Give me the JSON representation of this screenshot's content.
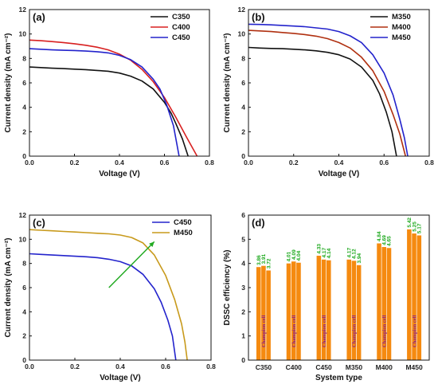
{
  "chart_data": [
    {
      "panel_label": "(a)",
      "type": "line",
      "xlabel": "Voltage (V)",
      "ylabel": "Current density (mA cm⁻²)",
      "xlim": [
        0,
        0.8
      ],
      "ylim": [
        0,
        12
      ],
      "xticks": [
        "0.0",
        "0.2",
        "0.4",
        "0.6",
        "0.8"
      ],
      "yticks": [
        "0",
        "2",
        "4",
        "6",
        "8",
        "10",
        "12"
      ],
      "legend_position": "top-right",
      "series": [
        {
          "name": "C350",
          "color": "#111111",
          "jsc": 7.3,
          "voc": 0.705,
          "points": [
            [
              0,
              7.3
            ],
            [
              0.05,
              7.25
            ],
            [
              0.1,
              7.2
            ],
            [
              0.15,
              7.17
            ],
            [
              0.2,
              7.12
            ],
            [
              0.25,
              7.08
            ],
            [
              0.3,
              7.02
            ],
            [
              0.35,
              6.95
            ],
            [
              0.4,
              6.8
            ],
            [
              0.45,
              6.55
            ],
            [
              0.5,
              6.15
            ],
            [
              0.55,
              5.5
            ],
            [
              0.6,
              4.4
            ],
            [
              0.63,
              3.5
            ],
            [
              0.65,
              2.7
            ],
            [
              0.68,
              1.4
            ],
            [
              0.705,
              0
            ]
          ]
        },
        {
          "name": "C400",
          "color": "#d82020",
          "jsc": 9.5,
          "voc": 0.745,
          "points": [
            [
              0,
              9.5
            ],
            [
              0.05,
              9.45
            ],
            [
              0.1,
              9.38
            ],
            [
              0.15,
              9.3
            ],
            [
              0.2,
              9.2
            ],
            [
              0.25,
              9.08
            ],
            [
              0.3,
              8.92
            ],
            [
              0.35,
              8.7
            ],
            [
              0.4,
              8.35
            ],
            [
              0.45,
              7.85
            ],
            [
              0.5,
              7.1
            ],
            [
              0.55,
              6.1
            ],
            [
              0.6,
              4.8
            ],
            [
              0.65,
              3.2
            ],
            [
              0.7,
              1.5
            ],
            [
              0.745,
              0
            ]
          ]
        },
        {
          "name": "C450",
          "color": "#2323cc",
          "jsc": 8.8,
          "voc": 0.665,
          "points": [
            [
              0,
              8.8
            ],
            [
              0.05,
              8.75
            ],
            [
              0.1,
              8.7
            ],
            [
              0.15,
              8.67
            ],
            [
              0.2,
              8.65
            ],
            [
              0.25,
              8.6
            ],
            [
              0.3,
              8.55
            ],
            [
              0.35,
              8.45
            ],
            [
              0.4,
              8.25
            ],
            [
              0.45,
              7.9
            ],
            [
              0.5,
              7.3
            ],
            [
              0.55,
              6.3
            ],
            [
              0.58,
              5.5
            ],
            [
              0.61,
              4.2
            ],
            [
              0.64,
              2.5
            ],
            [
              0.665,
              0
            ]
          ]
        }
      ]
    },
    {
      "panel_label": "(b)",
      "type": "line",
      "xlabel": "Voltage (V)",
      "ylabel": "Current density (mA cm⁻²)",
      "xlim": [
        0,
        0.8
      ],
      "ylim": [
        0,
        12
      ],
      "xticks": [
        "0.0",
        "0.2",
        "0.4",
        "0.6",
        "0.8"
      ],
      "yticks": [
        "0",
        "2",
        "4",
        "6",
        "8",
        "10",
        "12"
      ],
      "legend_position": "top-right",
      "series": [
        {
          "name": "M350",
          "color": "#111111",
          "jsc": 8.9,
          "voc": 0.655,
          "points": [
            [
              0,
              8.9
            ],
            [
              0.05,
              8.85
            ],
            [
              0.1,
              8.82
            ],
            [
              0.15,
              8.8
            ],
            [
              0.2,
              8.75
            ],
            [
              0.25,
              8.7
            ],
            [
              0.3,
              8.62
            ],
            [
              0.35,
              8.5
            ],
            [
              0.4,
              8.3
            ],
            [
              0.45,
              7.95
            ],
            [
              0.5,
              7.3
            ],
            [
              0.55,
              6.2
            ],
            [
              0.58,
              5.1
            ],
            [
              0.61,
              3.6
            ],
            [
              0.635,
              2.0
            ],
            [
              0.655,
              0
            ]
          ]
        },
        {
          "name": "M400",
          "color": "#b03010",
          "jsc": 10.3,
          "voc": 0.695,
          "points": [
            [
              0,
              10.3
            ],
            [
              0.05,
              10.25
            ],
            [
              0.1,
              10.2
            ],
            [
              0.15,
              10.12
            ],
            [
              0.2,
              10.05
            ],
            [
              0.25,
              9.95
            ],
            [
              0.3,
              9.82
            ],
            [
              0.35,
              9.62
            ],
            [
              0.4,
              9.3
            ],
            [
              0.45,
              8.85
            ],
            [
              0.5,
              8.1
            ],
            [
              0.55,
              7.0
            ],
            [
              0.6,
              5.3
            ],
            [
              0.64,
              3.4
            ],
            [
              0.67,
              1.8
            ],
            [
              0.695,
              0
            ]
          ]
        },
        {
          "name": "M450",
          "color": "#2323cc",
          "jsc": 10.8,
          "voc": 0.705,
          "points": [
            [
              0,
              10.8
            ],
            [
              0.05,
              10.78
            ],
            [
              0.1,
              10.75
            ],
            [
              0.15,
              10.7
            ],
            [
              0.2,
              10.65
            ],
            [
              0.25,
              10.6
            ],
            [
              0.3,
              10.5
            ],
            [
              0.35,
              10.4
            ],
            [
              0.4,
              10.2
            ],
            [
              0.45,
              9.85
            ],
            [
              0.5,
              9.3
            ],
            [
              0.55,
              8.3
            ],
            [
              0.6,
              6.8
            ],
            [
              0.64,
              5.0
            ],
            [
              0.67,
              3.0
            ],
            [
              0.69,
              1.5
            ],
            [
              0.705,
              0
            ]
          ]
        }
      ]
    },
    {
      "panel_label": "(c)",
      "type": "line",
      "xlabel": "Voltage (V)",
      "ylabel": "Current density (mA cm⁻²)",
      "xlim": [
        0,
        0.8
      ],
      "ylim": [
        0,
        12
      ],
      "xticks": [
        "0.0",
        "0.2",
        "0.4",
        "0.6",
        "0.8"
      ],
      "yticks": [
        "0",
        "2",
        "4",
        "6",
        "8",
        "10",
        "12"
      ],
      "legend_position": "top-right",
      "annotation": {
        "type": "arrow",
        "color": "#22aa22",
        "from": [
          0.35,
          6.0
        ],
        "to": [
          0.55,
          9.8
        ]
      },
      "series": [
        {
          "name": "C450",
          "color": "#2323cc",
          "jsc": 8.8,
          "voc": 0.645,
          "points": [
            [
              0,
              8.8
            ],
            [
              0.05,
              8.75
            ],
            [
              0.1,
              8.7
            ],
            [
              0.15,
              8.65
            ],
            [
              0.2,
              8.6
            ],
            [
              0.25,
              8.55
            ],
            [
              0.3,
              8.48
            ],
            [
              0.35,
              8.35
            ],
            [
              0.4,
              8.15
            ],
            [
              0.45,
              7.8
            ],
            [
              0.5,
              7.1
            ],
            [
              0.55,
              5.9
            ],
            [
              0.58,
              4.8
            ],
            [
              0.61,
              3.3
            ],
            [
              0.63,
              2.0
            ],
            [
              0.645,
              0
            ]
          ]
        },
        {
          "name": "M450",
          "color": "#c89a1c",
          "jsc": 10.8,
          "voc": 0.695,
          "points": [
            [
              0,
              10.8
            ],
            [
              0.05,
              10.75
            ],
            [
              0.1,
              10.7
            ],
            [
              0.15,
              10.65
            ],
            [
              0.2,
              10.6
            ],
            [
              0.25,
              10.55
            ],
            [
              0.3,
              10.5
            ],
            [
              0.35,
              10.45
            ],
            [
              0.4,
              10.35
            ],
            [
              0.45,
              10.15
            ],
            [
              0.5,
              9.7
            ],
            [
              0.55,
              8.7
            ],
            [
              0.6,
              7.0
            ],
            [
              0.64,
              5.0
            ],
            [
              0.67,
              3.0
            ],
            [
              0.685,
              1.5
            ],
            [
              0.695,
              0
            ]
          ]
        }
      ]
    },
    {
      "panel_label": "(d)",
      "type": "bar",
      "xlabel": "System type",
      "ylabel": "DSSC efficiency (%)",
      "ylim": [
        0,
        6
      ],
      "yticks": [
        "0",
        "1",
        "2",
        "3",
        "4",
        "5",
        "6"
      ],
      "bar_color": "#f58a10",
      "label_color": "#1ca81c",
      "annotation_color": "#8a1a8a",
      "bar_annotation": "Champion cell",
      "categories": [
        "C350",
        "C400",
        "C450",
        "M350",
        "M400",
        "M450"
      ],
      "values": [
        [
          3.86,
          3.91,
          3.72
        ],
        [
          4.01,
          4.09,
          4.04
        ],
        [
          4.33,
          4.17,
          4.14
        ],
        [
          4.17,
          4.12,
          3.94
        ],
        [
          4.84,
          4.69,
          4.65
        ],
        [
          5.42,
          5.25,
          5.17
        ]
      ],
      "value_labels": [
        [
          "3.86",
          "3.91",
          "3.72"
        ],
        [
          "4.01",
          "4.09",
          "4.04"
        ],
        [
          "4.33",
          "4.17",
          "4.14"
        ],
        [
          "4.17",
          "4.12",
          "3.94"
        ],
        [
          "4.84",
          "4.69",
          "4.65"
        ],
        [
          "5.42",
          "5.25",
          "5.17"
        ]
      ]
    }
  ]
}
